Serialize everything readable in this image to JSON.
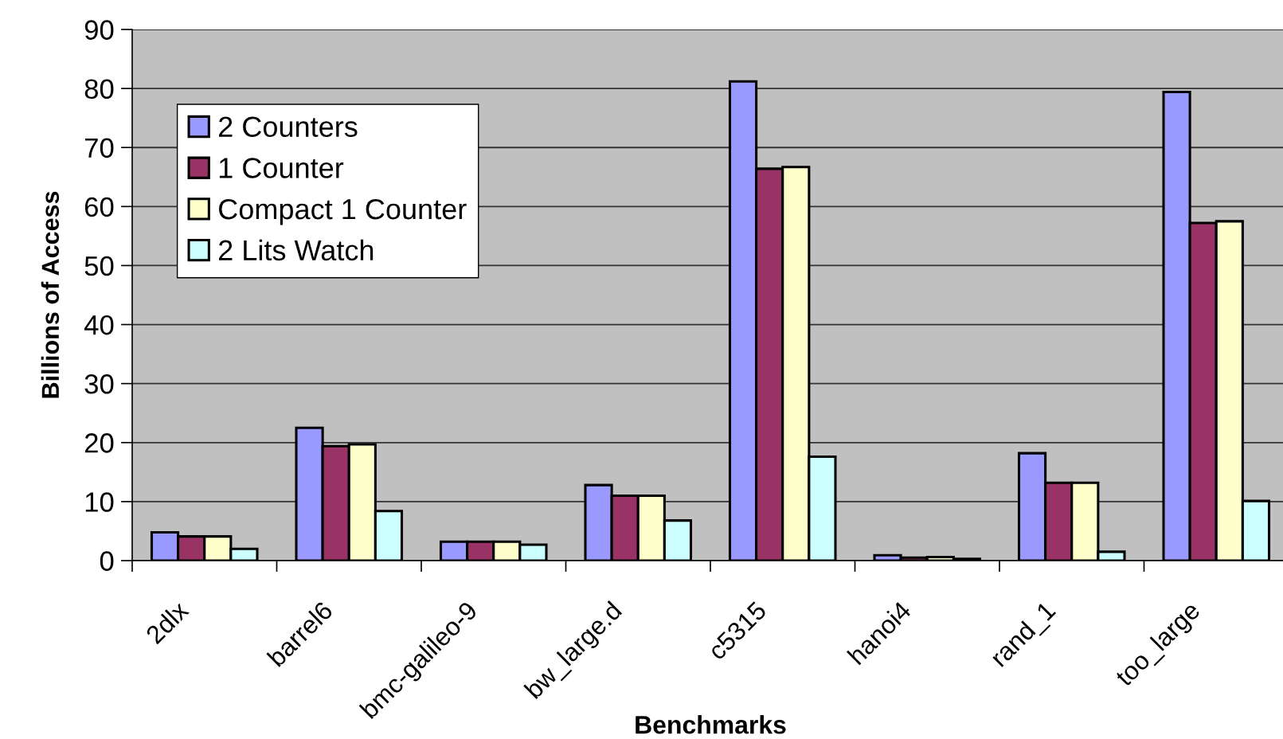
{
  "chart_data": {
    "type": "bar",
    "xlabel": "Benchmarks",
    "ylabel": "Billions of Access",
    "categories": [
      "2dlx",
      "barrel6",
      "bmc-galileo-9",
      "bw_large.d",
      "c5315",
      "hanoi4",
      "rand_1",
      "too_large"
    ],
    "series": [
      {
        "name": "2 Counters",
        "color": "#9999ff",
        "values": [
          4.8,
          22.5,
          3.2,
          12.8,
          81.2,
          0.9,
          18.2,
          79.4
        ]
      },
      {
        "name": "1 Counter",
        "color": "#993366",
        "values": [
          4.1,
          19.4,
          3.2,
          11.0,
          66.4,
          0.5,
          13.2,
          57.2
        ]
      },
      {
        "name": "Compact 1 Counter",
        "color": "#ffffcc",
        "values": [
          4.1,
          19.7,
          3.2,
          11.0,
          66.7,
          0.6,
          13.2,
          57.5
        ]
      },
      {
        "name": "2 Lits Watch",
        "color": "#ccffff",
        "values": [
          2.0,
          8.4,
          2.7,
          6.8,
          17.6,
          0.3,
          1.5,
          10.1
        ]
      }
    ],
    "ylim": [
      0,
      90
    ],
    "yticks": [
      0,
      10,
      20,
      30,
      40,
      50,
      60,
      70,
      80,
      90
    ],
    "grid": "y",
    "legend": "top left"
  }
}
